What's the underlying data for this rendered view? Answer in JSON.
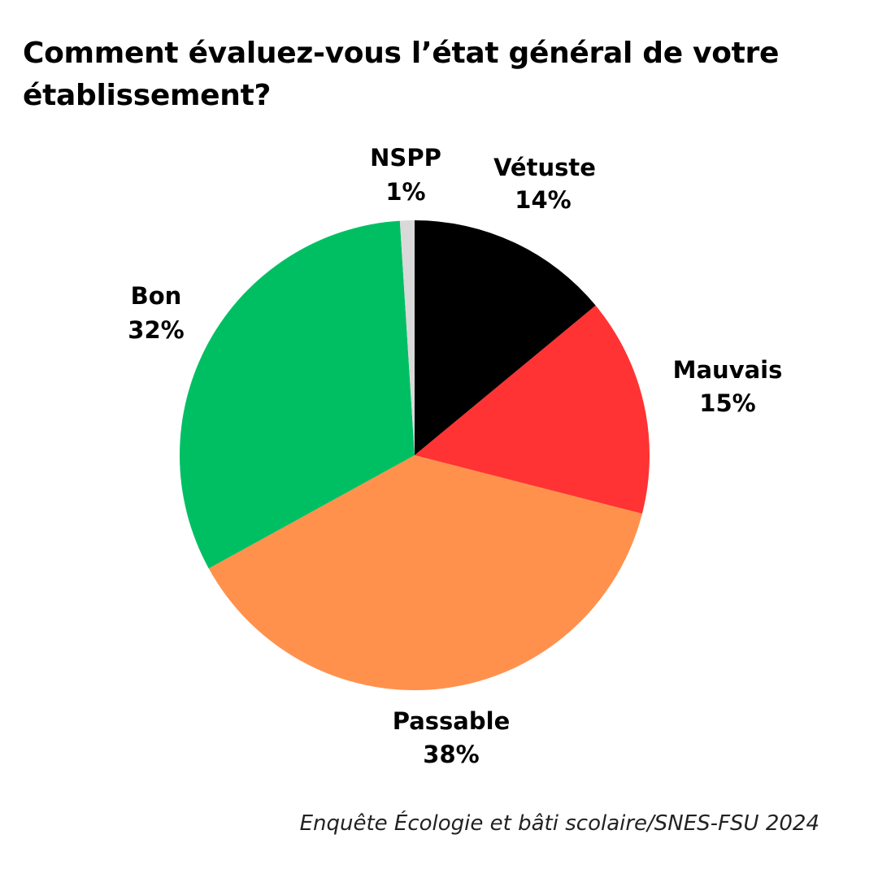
{
  "chart_data": {
    "type": "pie",
    "title": "Comment évaluez-vous l’état général de votre établissement?",
    "start_angle_deg": 0,
    "direction": "clockwise",
    "slices": [
      {
        "label": "Vétuste",
        "value": 14,
        "value_label": "14%",
        "color": "#000000"
      },
      {
        "label": "Mauvais",
        "value": 15,
        "value_label": "15%",
        "color": "#FF3333"
      },
      {
        "label": "Passable",
        "value": 38,
        "value_label": "38%",
        "color": "#FF914D"
      },
      {
        "label": "Bon",
        "value": 32,
        "value_label": "32%",
        "color": "#00BF63"
      },
      {
        "label": "NSPP",
        "value": 1,
        "value_label": "1%",
        "color": "#D9D9D9"
      }
    ],
    "legend": "none"
  },
  "source_note": "Enquête Écologie et bâti scolaire/SNES-FSU 2024"
}
